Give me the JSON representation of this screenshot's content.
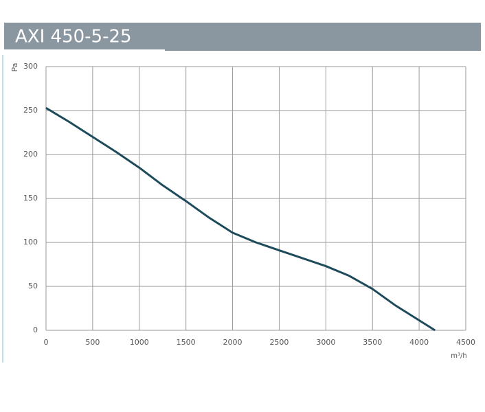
{
  "chart_data": {
    "type": "line",
    "title": "AXI 450-5-25",
    "y_label": "Pa",
    "x_label": "m³/h",
    "x": [
      0,
      250,
      500,
      750,
      1000,
      1250,
      1500,
      1750,
      2000,
      2250,
      2500,
      2750,
      3000,
      3250,
      3500,
      3750,
      4170
    ],
    "series": [
      {
        "name": "AXI 450-5-25",
        "color": "#1e4b5c",
        "values": [
          253,
          237,
          220,
          203,
          185,
          165,
          147,
          128,
          111,
          100,
          91,
          82,
          73,
          62,
          47,
          28,
          0
        ]
      }
    ],
    "xlim": [
      0,
      4500
    ],
    "xticks": [
      0,
      500,
      1000,
      1500,
      2000,
      2500,
      3000,
      3500,
      4000,
      4500
    ],
    "ylim": [
      0,
      300
    ],
    "yticks": [
      0,
      50,
      100,
      150,
      200,
      250,
      300
    ],
    "grid": true
  }
}
